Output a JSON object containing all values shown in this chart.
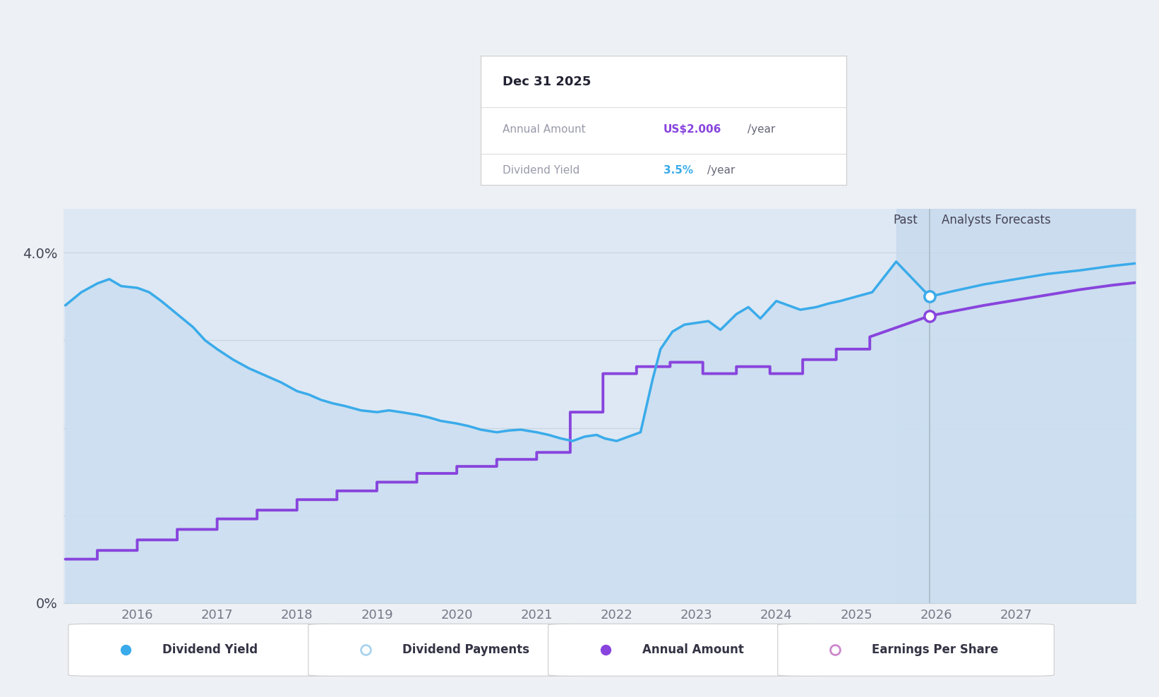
{
  "background_color": "#edf0f4",
  "plot_bg_color": "#dde8f4",
  "forecast_shade_color": "#c5d8ee",
  "blue_line_color": "#3aabea",
  "blue_fill_color": "#ccdff0",
  "purple_line_color": "#8844dd",
  "grid_color": "#c8d4e0",
  "axis_color": "#c8d4e0",
  "tick_color": "#888888",
  "xlim": [
    2015.08,
    2028.5
  ],
  "ylim": [
    0.0,
    4.5
  ],
  "y_display_max": 4.0,
  "xtick_years": [
    2016,
    2017,
    2018,
    2019,
    2020,
    2021,
    2022,
    2023,
    2024,
    2025,
    2026,
    2027
  ],
  "past_forecast_x": 2025.92,
  "forecast_start_x": 2025.5,
  "tooltip_title": "Dec 31 2025",
  "tooltip_label1": "Annual Amount",
  "tooltip_value1": "US$2.006/year",
  "tooltip_value1_prefix": "US$2.006",
  "tooltip_value1_suffix": "/year",
  "tooltip_label2": "Dividend Yield",
  "tooltip_value2": "3.5%/year",
  "tooltip_value2_prefix": "3.5%",
  "tooltip_value2_suffix": "/year",
  "tooltip_color1": "#8844dd",
  "tooltip_color2": "#3aabea",
  "dot_blue_y": 3.5,
  "dot_purple_y": 3.28,
  "blue_yield_x": [
    2015.1,
    2015.3,
    2015.5,
    2015.65,
    2015.8,
    2016.0,
    2016.15,
    2016.3,
    2016.5,
    2016.7,
    2016.85,
    2017.0,
    2017.2,
    2017.4,
    2017.6,
    2017.8,
    2018.0,
    2018.15,
    2018.3,
    2018.45,
    2018.6,
    2018.8,
    2019.0,
    2019.15,
    2019.3,
    2019.5,
    2019.65,
    2019.8,
    2020.0,
    2020.15,
    2020.3,
    2020.5,
    2020.65,
    2020.8,
    2021.0,
    2021.15,
    2021.3,
    2021.45,
    2021.6,
    2021.75,
    2021.85,
    2022.0,
    2022.15,
    2022.3,
    2022.45,
    2022.55,
    2022.7,
    2022.85,
    2023.0,
    2023.15,
    2023.3,
    2023.5,
    2023.65,
    2023.8,
    2024.0,
    2024.15,
    2024.3,
    2024.5,
    2024.65,
    2024.8,
    2025.0,
    2025.2,
    2025.5,
    2025.92
  ],
  "blue_yield_y": [
    3.4,
    3.55,
    3.65,
    3.7,
    3.62,
    3.6,
    3.55,
    3.45,
    3.3,
    3.15,
    3.0,
    2.9,
    2.78,
    2.68,
    2.6,
    2.52,
    2.42,
    2.38,
    2.32,
    2.28,
    2.25,
    2.2,
    2.18,
    2.2,
    2.18,
    2.15,
    2.12,
    2.08,
    2.05,
    2.02,
    1.98,
    1.95,
    1.97,
    1.98,
    1.95,
    1.92,
    1.88,
    1.85,
    1.9,
    1.92,
    1.88,
    1.85,
    1.9,
    1.95,
    2.55,
    2.9,
    3.1,
    3.18,
    3.2,
    3.22,
    3.12,
    3.3,
    3.38,
    3.25,
    3.45,
    3.4,
    3.35,
    3.38,
    3.42,
    3.45,
    3.5,
    3.55,
    3.9,
    3.5
  ],
  "blue_forecast_x": [
    2025.92,
    2026.2,
    2026.6,
    2027.0,
    2027.4,
    2027.8,
    2028.2,
    2028.5
  ],
  "blue_forecast_y": [
    3.5,
    3.56,
    3.64,
    3.7,
    3.76,
    3.8,
    3.85,
    3.88
  ],
  "purple_x": [
    2015.1,
    2015.1,
    2015.5,
    2015.5,
    2016.0,
    2016.0,
    2016.5,
    2016.5,
    2017.0,
    2017.0,
    2017.5,
    2017.5,
    2018.0,
    2018.0,
    2018.5,
    2018.5,
    2019.0,
    2019.0,
    2019.5,
    2019.5,
    2020.0,
    2020.0,
    2020.5,
    2020.5,
    2021.0,
    2021.0,
    2021.42,
    2021.42,
    2021.83,
    2021.83,
    2022.25,
    2022.25,
    2022.67,
    2022.67,
    2023.08,
    2023.08,
    2023.5,
    2023.5,
    2023.92,
    2023.92,
    2024.33,
    2024.33,
    2024.75,
    2024.75,
    2025.17,
    2025.17,
    2025.92
  ],
  "purple_y": [
    0.5,
    0.5,
    0.5,
    0.6,
    0.6,
    0.72,
    0.72,
    0.84,
    0.84,
    0.96,
    0.96,
    1.06,
    1.06,
    1.18,
    1.18,
    1.28,
    1.28,
    1.38,
    1.38,
    1.48,
    1.48,
    1.56,
    1.56,
    1.64,
    1.64,
    1.72,
    1.72,
    2.18,
    2.18,
    2.62,
    2.62,
    2.7,
    2.7,
    2.75,
    2.75,
    2.62,
    2.62,
    2.7,
    2.7,
    2.62,
    2.62,
    2.78,
    2.78,
    2.9,
    2.9,
    3.04,
    3.28
  ],
  "purple_forecast_x": [
    2025.92,
    2026.2,
    2026.6,
    2027.0,
    2027.4,
    2027.8,
    2028.2,
    2028.5
  ],
  "purple_forecast_y": [
    3.28,
    3.33,
    3.4,
    3.46,
    3.52,
    3.58,
    3.63,
    3.66
  ],
  "legend_items": [
    {
      "label": "Dividend Yield",
      "filled": true,
      "color": "#3aabea"
    },
    {
      "label": "Dividend Payments",
      "filled": false,
      "color": "#a8d4ee"
    },
    {
      "label": "Annual Amount",
      "filled": true,
      "color": "#8844dd"
    },
    {
      "label": "Earnings Per Share",
      "filled": false,
      "color": "#cc88cc"
    }
  ]
}
